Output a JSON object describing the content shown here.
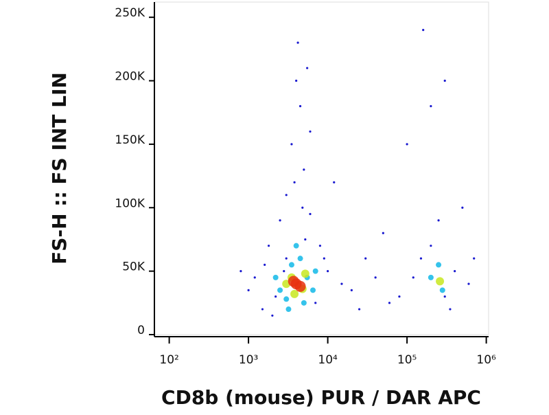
{
  "chart_data": {
    "type": "scatter",
    "x_label": "CD8b (mouse) PUR / DAR APC",
    "y_label": "FS-H :: FS INT LIN",
    "xscale": "log",
    "xlim": [
      65,
      1070000
    ],
    "ylim": [
      0,
      262000
    ],
    "xticks": [
      {
        "value": 100,
        "label": "10²"
      },
      {
        "value": 1000,
        "label": "10³"
      },
      {
        "value": 10000,
        "label": "10⁴"
      },
      {
        "value": 100000,
        "label": "10⁵"
      },
      {
        "value": 1000000,
        "label": "10⁶"
      }
    ],
    "yticks": [
      0,
      {
        "value": 50000,
        "label": "50K"
      },
      {
        "value": 100000,
        "label": "100K"
      },
      {
        "value": 150000,
        "label": "150K"
      },
      {
        "value": 200000,
        "label": "200K"
      },
      {
        "value": 250000,
        "label": "250K"
      }
    ],
    "series": [
      {
        "color": "#1a1ad0",
        "x": [
          1500,
          2000,
          1200,
          1800,
          2500,
          3000,
          3500,
          4000,
          4500,
          5000,
          6000,
          8000,
          10000,
          15000,
          20000,
          30000,
          50000,
          80000,
          120000,
          150000,
          200000,
          300000,
          400000,
          350000,
          250000,
          600000,
          500000,
          100000,
          200000,
          3000,
          2200,
          7000,
          9000,
          1000,
          800,
          6000,
          4200,
          5500,
          12000,
          25000,
          40000,
          60000,
          700000,
          300000,
          160000,
          3800,
          5200,
          2800,
          1600,
          4800
        ],
        "values": [
          20000,
          15000,
          45000,
          70000,
          90000,
          110000,
          150000,
          200000,
          180000,
          130000,
          95000,
          70000,
          50000,
          40000,
          35000,
          60000,
          80000,
          30000,
          45000,
          60000,
          70000,
          30000,
          50000,
          20000,
          90000,
          40000,
          100000,
          150000,
          180000,
          60000,
          30000,
          25000,
          60000,
          35000,
          50000,
          160000,
          230000,
          210000,
          120000,
          20000,
          45000,
          25000,
          60000,
          200000,
          240000,
          120000,
          75000,
          50000,
          55000,
          100000
        ]
      },
      {
        "color": "#12b8e8",
        "x": [
          2500,
          3000,
          3500,
          5500,
          6500,
          2200,
          4500,
          7000,
          200000,
          280000,
          250000,
          3200,
          5000,
          4000
        ],
        "values": [
          35000,
          28000,
          55000,
          45000,
          35000,
          45000,
          60000,
          50000,
          45000,
          35000,
          55000,
          20000,
          25000,
          70000
        ]
      },
      {
        "color": "#c8e820",
        "x": [
          3000,
          3500,
          4800,
          5200,
          3800,
          260000
        ],
        "values": [
          40000,
          45000,
          36000,
          48000,
          32000,
          42000
        ]
      },
      {
        "color": "#e83010",
        "x": [
          4000,
          4500,
          3700
        ],
        "values": [
          40000,
          38000,
          42000
        ]
      }
    ]
  }
}
